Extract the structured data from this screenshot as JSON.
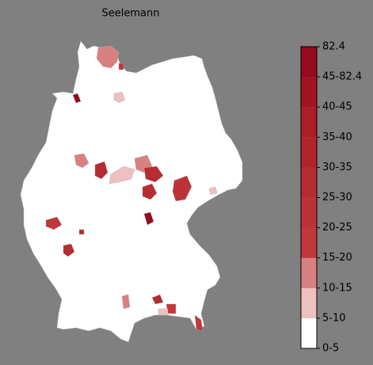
{
  "title": "Seelemann",
  "colorbar": {
    "labels": [
      "0-5",
      "5-10",
      "10-15",
      "15-20",
      "20-25",
      "25-30",
      "30-35",
      "35-40",
      "40-45",
      "45-82.4",
      "82.4"
    ],
    "colors": [
      "#ffffff",
      "#efc0c0",
      "#d98080",
      "#c0373c",
      "#bc3238",
      "#b72b32",
      "#b2242c",
      "#ab1d27",
      "#a21421",
      "#960a1d"
    ]
  }
}
